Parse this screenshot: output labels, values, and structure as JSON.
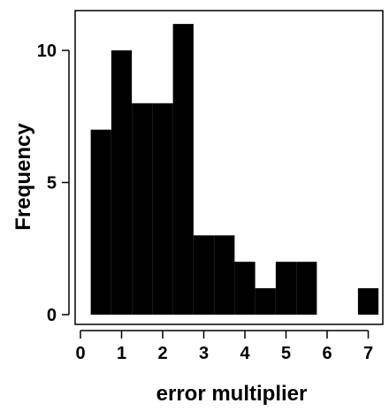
{
  "chart_data": {
    "type": "bar",
    "title": "",
    "xlabel": "error multiplier",
    "ylabel": "Frequency",
    "bins": [
      {
        "x0": 0.25,
        "x1": 0.75,
        "count": 7
      },
      {
        "x0": 0.75,
        "x1": 1.25,
        "count": 10
      },
      {
        "x0": 1.25,
        "x1": 1.75,
        "count": 8
      },
      {
        "x0": 1.75,
        "x1": 2.25,
        "count": 8
      },
      {
        "x0": 2.25,
        "x1": 2.75,
        "count": 11
      },
      {
        "x0": 2.75,
        "x1": 3.25,
        "count": 3
      },
      {
        "x0": 3.25,
        "x1": 3.75,
        "count": 3
      },
      {
        "x0": 3.75,
        "x1": 4.25,
        "count": 2
      },
      {
        "x0": 4.25,
        "x1": 4.75,
        "count": 1
      },
      {
        "x0": 4.75,
        "x1": 5.25,
        "count": 2
      },
      {
        "x0": 5.25,
        "x1": 5.75,
        "count": 2
      },
      {
        "x0": 5.75,
        "x1": 6.25,
        "count": 0
      },
      {
        "x0": 6.25,
        "x1": 6.75,
        "count": 0
      },
      {
        "x0": 6.75,
        "x1": 7.25,
        "count": 1
      }
    ],
    "xticks": [
      0,
      1,
      2,
      3,
      4,
      5,
      6,
      7
    ],
    "yticks": [
      0,
      5,
      10
    ],
    "xlim": [
      0,
      7.3
    ],
    "ylim": [
      0,
      11
    ],
    "grid": false,
    "bar_color": "#000000"
  }
}
